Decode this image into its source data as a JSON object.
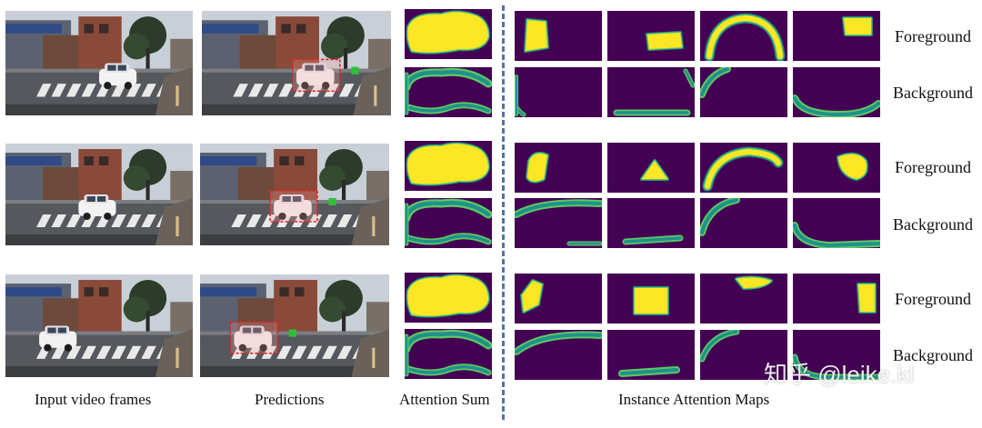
{
  "colors": {
    "viridis_background": "#440154",
    "viridis_edge": "#21918c",
    "viridis_mid": "#5ec962",
    "viridis_peak": "#fde725",
    "bbox_red": "#e02424",
    "divider_blue": "#5572a8"
  },
  "row_labels": {
    "foreground": "Foreground",
    "background": "Background"
  },
  "captions": {
    "input_frames": "Input video frames",
    "predictions": "Predictions",
    "attention_sum": "Attention Sum",
    "instance_maps": "Instance Attention Maps"
  },
  "watermark": "知乎 @leike.kl",
  "groups": [
    {
      "frame": "frame-1"
    },
    {
      "frame": "frame-2"
    },
    {
      "frame": "frame-3"
    }
  ]
}
